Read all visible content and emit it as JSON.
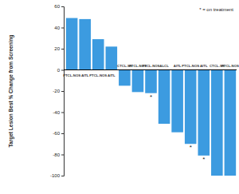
{
  "chart_data": {
    "type": "bar",
    "y_label": "Target Lesion Best % Change from Screening",
    "categories": [
      "PTCL-NOS",
      "AITL",
      "PTCL-NOS",
      "AITL",
      "CTCL-SS",
      "PTCL-NOS",
      "PTCL-NOS",
      "ALCL",
      "AITL",
      "PTCL-NOS",
      "AITL",
      "CTCL-SS",
      "PTCL-NOS"
    ],
    "values": [
      49,
      48,
      29,
      22,
      -15,
      -21,
      -22,
      -51,
      -59,
      -70,
      -81,
      -100,
      -100
    ],
    "annotations": [
      null,
      null,
      null,
      null,
      null,
      null,
      "*",
      null,
      null,
      "*",
      "*",
      null,
      null
    ],
    "legend_label": "* = on treatment",
    "legend": "upper right",
    "color": "#3c9be0",
    "ylim": [
      -100,
      60
    ],
    "yticks": [
      -100,
      -80,
      -60,
      -40,
      -20,
      0,
      20,
      40,
      60
    ],
    "grid": false
  }
}
